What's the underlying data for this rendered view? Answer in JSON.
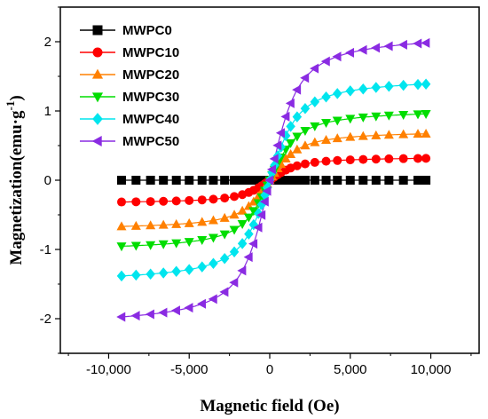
{
  "chart_data": {
    "type": "scatter",
    "title": "",
    "xlabel": "Magnetic field (Oe)",
    "ylabel": "Magnetization(emu·g",
    "ylabel_superscript": "-1",
    "ylabel_suffix": ")",
    "xlim": [
      -13000,
      13000
    ],
    "ylim": [
      -2.5,
      2.5
    ],
    "x_ticks": [
      -10000,
      -5000,
      0,
      5000,
      10000
    ],
    "x_tick_labels": [
      "-10,000",
      "-5,000",
      "0",
      "5,000",
      "10,000"
    ],
    "y_ticks": [
      -2,
      -1,
      0,
      1,
      2
    ],
    "y_tick_labels": [
      "-2",
      "-1",
      "0",
      "1",
      "2"
    ],
    "grid": false,
    "legend_position": "top-left",
    "series": [
      {
        "name": "MWPC0",
        "color": "#000000",
        "marker": "square",
        "ms": 0.0
      },
      {
        "name": "MWPC10",
        "color": "#ff0000",
        "marker": "circle",
        "ms": 0.33
      },
      {
        "name": "MWPC20",
        "color": "#ff8000",
        "marker": "triangle-up",
        "ms": 0.7
      },
      {
        "name": "MWPC30",
        "color": "#00dd00",
        "marker": "triangle-down",
        "ms": 1.0
      },
      {
        "name": "MWPC40",
        "color": "#00e5ee",
        "marker": "diamond",
        "ms": 1.45
      },
      {
        "name": "MWPC50",
        "color": "#8a2be2",
        "marker": "triangle-left",
        "ms": 2.07
      }
    ],
    "x_points": [
      -9200,
      -8300,
      -7400,
      -6600,
      -5800,
      -5000,
      -4200,
      -3500,
      -2800,
      -2200,
      -1700,
      -1300,
      -1000,
      -700,
      -500,
      -300,
      -150,
      0,
      150,
      300,
      500,
      700,
      1000,
      1300,
      1700,
      2200,
      2800,
      3500,
      4200,
      5000,
      5800,
      6600,
      7400,
      8300,
      9200,
      9700
    ]
  }
}
